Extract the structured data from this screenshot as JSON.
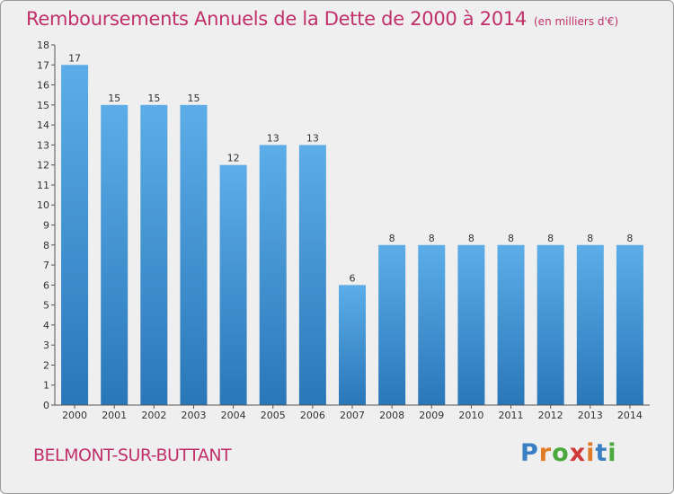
{
  "header": {
    "title": "Remboursements Annuels de la Dette de 2000 à 2014",
    "unit": "(en milliers d'€)"
  },
  "footer": {
    "city": "BELMONT-SUR-BUTTANT",
    "logo_text": "Proxiti"
  },
  "colors": {
    "title": "#c0306a",
    "bar_top": "#5cade8",
    "bar_bottom": "#2a77b8",
    "logo": [
      "#3a7fc4",
      "#e07b27",
      "#4aa83d",
      "#d03a3a",
      "#e07b27",
      "#3a7fc4",
      "#4aa83d"
    ]
  },
  "chart_data": {
    "type": "bar",
    "title": "Remboursements Annuels de la Dette de 2000 à 2014",
    "categories": [
      "2000",
      "2001",
      "2002",
      "2003",
      "2004",
      "2005",
      "2006",
      "2007",
      "2008",
      "2009",
      "2010",
      "2011",
      "2012",
      "2013",
      "2014"
    ],
    "values": [
      17,
      15,
      15,
      15,
      12,
      13,
      13,
      6,
      8,
      8,
      8,
      8,
      8,
      8,
      8
    ],
    "ylim": [
      0,
      18
    ],
    "yticks": [
      0,
      1,
      2,
      3,
      4,
      5,
      6,
      7,
      8,
      9,
      10,
      11,
      12,
      13,
      14,
      15,
      16,
      17,
      18
    ],
    "grid": false,
    "data_labels": true
  }
}
